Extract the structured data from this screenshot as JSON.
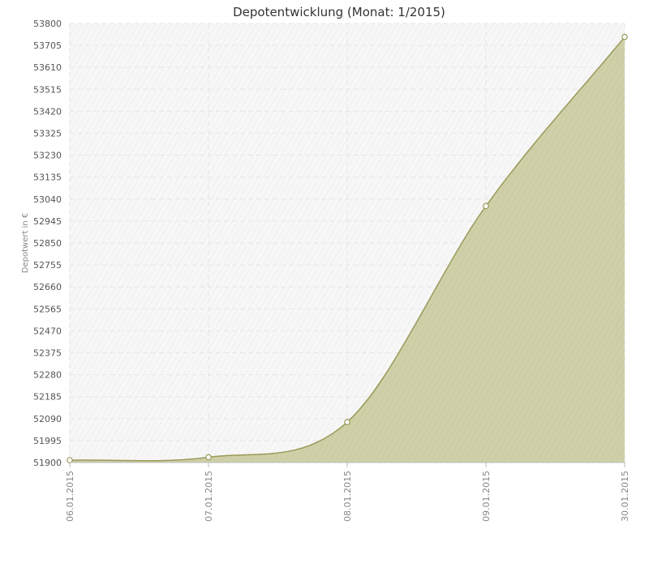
{
  "chart_data": {
    "type": "area",
    "title": "Depotentwicklung (Monat: 1/2015)",
    "xlabel": "",
    "ylabel": "Depotwert in €",
    "categories": [
      "06.01.2015",
      "07.01.2015",
      "08.01.2015",
      "09.01.2015",
      "30.01.2015"
    ],
    "values": [
      51910,
      51923,
      52075,
      53010,
      53742
    ],
    "ylim": [
      51900,
      53800
    ],
    "y_ticks": [
      "51900",
      "51995",
      "52090",
      "52185",
      "52280",
      "52375",
      "52470",
      "52565",
      "52660",
      "52755",
      "52850",
      "52945",
      "53040",
      "53135",
      "53230",
      "53325",
      "53420",
      "53515",
      "53610",
      "53705",
      "53800"
    ],
    "grid": true,
    "legend": "none",
    "colors": {
      "fill": "#cfd0a8",
      "line": "#9a9a5a",
      "marker_fill": "#ffffff",
      "grid": "#e6e6e6",
      "plot_bg": "#f8f8f8"
    }
  }
}
